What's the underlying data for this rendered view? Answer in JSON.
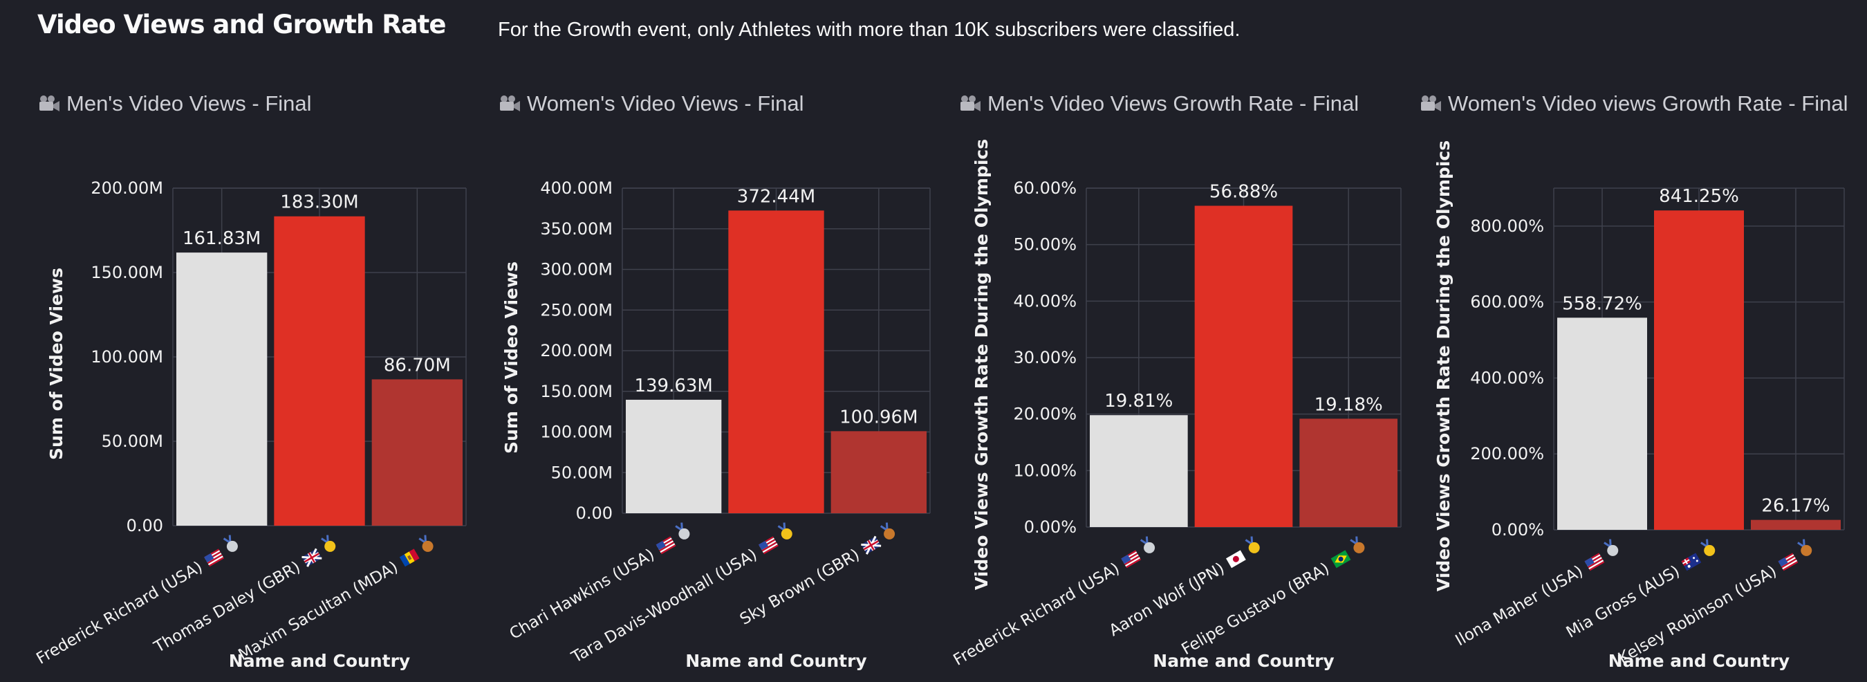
{
  "page": {
    "title": "Video Views and Growth Rate",
    "note": "For the Growth event, only Athletes with more than 10K subscribers were classified."
  },
  "colors": {
    "background": "#1f2028",
    "silver_bar": "#e0e0e0",
    "gold_bar": "#df3025",
    "bronze_bar": "#b03530",
    "grid": "#3f414c"
  },
  "chart_data": [
    {
      "type": "bar",
      "heading_icon": "movie-camera-icon",
      "title": "Men's Video Views - Final",
      "xlabel": "Name and Country",
      "ylabel": "Sum of Video Views",
      "ylim": [
        0,
        200000000
      ],
      "yticks": [
        0,
        50000000,
        100000000,
        150000000,
        200000000
      ],
      "ytick_labels": [
        "0.00",
        "50.00M",
        "100.00M",
        "150.00M",
        "200.00M"
      ],
      "categories": [
        "Frederick Richard (USA)",
        "Thomas Daley (GBR)",
        "Maxim Sacultan (MDA)"
      ],
      "flags": [
        "us",
        "gb",
        "md"
      ],
      "medals": [
        "silver",
        "gold",
        "bronze"
      ],
      "values": [
        161830000,
        183300000,
        86700000
      ],
      "value_labels": [
        "161.83M",
        "183.30M",
        "86.70M"
      ],
      "grid": true
    },
    {
      "type": "bar",
      "heading_icon": "movie-camera-icon",
      "title": "Women's Video Views - Final",
      "xlabel": "Name and Country",
      "ylabel": "Sum of Video Views",
      "ylim": [
        0,
        400000000
      ],
      "yticks": [
        0,
        50000000,
        100000000,
        150000000,
        200000000,
        250000000,
        300000000,
        350000000,
        400000000
      ],
      "ytick_labels": [
        "0.00",
        "50.00M",
        "100.00M",
        "150.00M",
        "200.00M",
        "250.00M",
        "300.00M",
        "350.00M",
        "400.00M"
      ],
      "categories": [
        "Chari Hawkins (USA)",
        "Tara Davis-Woodhall (USA)",
        "Sky Brown (GBR)"
      ],
      "flags": [
        "us",
        "us",
        "gb"
      ],
      "medals": [
        "silver",
        "gold",
        "bronze"
      ],
      "values": [
        139630000,
        372440000,
        100960000
      ],
      "value_labels": [
        "139.63M",
        "372.44M",
        "100.96M"
      ],
      "grid": true
    },
    {
      "type": "bar",
      "heading_icon": "movie-camera-icon",
      "title": "Men's Video Views Growth Rate - Final",
      "xlabel": "Name and Country",
      "ylabel": "Video Views Growth Rate During the Olympics",
      "ylim": [
        0,
        0.6
      ],
      "yticks": [
        0,
        0.1,
        0.2,
        0.3,
        0.4,
        0.5,
        0.6
      ],
      "ytick_labels": [
        "0.00%",
        "10.00%",
        "20.00%",
        "30.00%",
        "40.00%",
        "50.00%",
        "60.00%"
      ],
      "categories": [
        "Frederick Richard (USA)",
        "Aaron Wolf (JPN)",
        "Felipe Gustavo (BRA)"
      ],
      "flags": [
        "us",
        "jp",
        "br"
      ],
      "medals": [
        "silver",
        "gold",
        "bronze"
      ],
      "values": [
        0.1981,
        0.5688,
        0.1918
      ],
      "value_labels": [
        "19.81%",
        "56.88%",
        "19.18%"
      ],
      "grid": true
    },
    {
      "type": "bar",
      "heading_icon": "movie-camera-icon",
      "title": "Women's Video views Growth Rate - Final",
      "xlabel": "Name and Country",
      "ylabel": "Video Views Growth Rate During the Olympics",
      "ylim": [
        0,
        9
      ],
      "yticks": [
        0,
        2,
        4,
        6,
        8
      ],
      "ytick_labels": [
        "0.00%",
        "200.00%",
        "400.00%",
        "600.00%",
        "800.00%"
      ],
      "categories": [
        "Ilona Maher (USA)",
        "Mia Gross (AUS)",
        "Kelsey Robinson (USA)"
      ],
      "flags": [
        "us",
        "au",
        "us"
      ],
      "medals": [
        "silver",
        "gold",
        "bronze"
      ],
      "values": [
        5.5872,
        8.4125,
        0.2617
      ],
      "value_labels": [
        "558.72%",
        "841.25%",
        "26.17%"
      ],
      "grid": true
    }
  ]
}
